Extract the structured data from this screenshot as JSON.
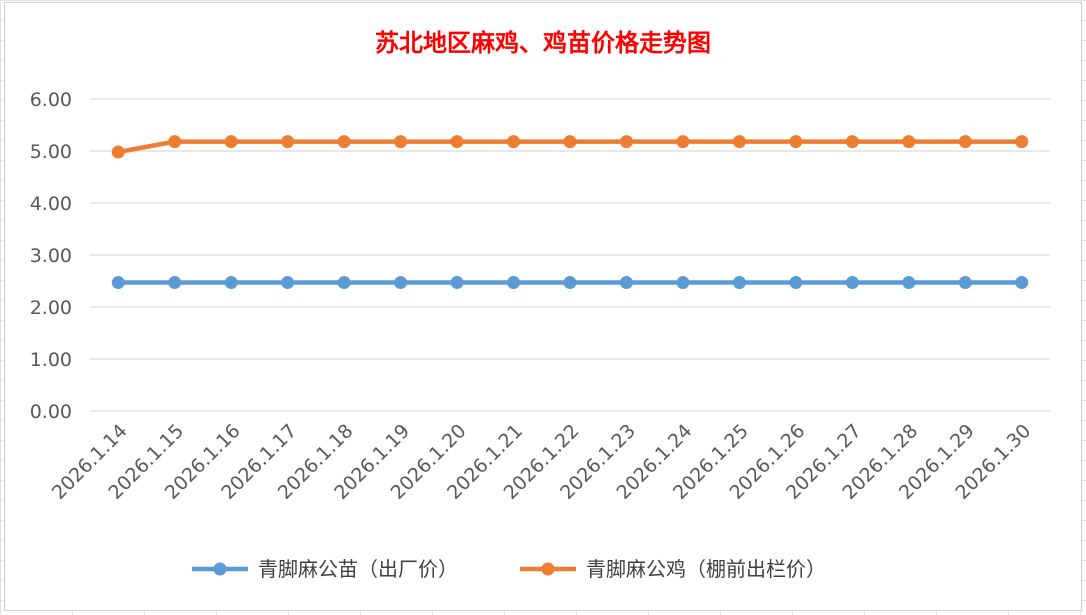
{
  "chart_data": {
    "type": "line",
    "title": "苏北地区麻鸡、鸡苗价格走势图",
    "categories": [
      "2026.1.14",
      "2026.1.15",
      "2026.1.16",
      "2026.1.17",
      "2026.1.18",
      "2026.1.19",
      "2026.1.20",
      "2026.1.21",
      "2026.1.22",
      "2026.1.23",
      "2026.1.24",
      "2026.1.25",
      "2026.1.26",
      "2026.1.27",
      "2026.1.28",
      "2026.1.29",
      "2026.1.30"
    ],
    "y_ticks": [
      "0.00",
      "1.00",
      "2.00",
      "3.00",
      "4.00",
      "5.00",
      "6.00"
    ],
    "ylim": [
      0,
      6
    ],
    "grid": true,
    "legend_position": "bottom",
    "series": [
      {
        "name": "青脚麻公苗（出厂价）",
        "color": "#5b9bd5",
        "values": [
          2.47,
          2.47,
          2.47,
          2.47,
          2.47,
          2.47,
          2.47,
          2.47,
          2.47,
          2.47,
          2.47,
          2.47,
          2.47,
          2.47,
          2.47,
          2.47,
          2.47
        ]
      },
      {
        "name": "青脚麻公鸡（棚前出栏价）",
        "color": "#ed7d31",
        "values": [
          4.98,
          5.18,
          5.18,
          5.18,
          5.18,
          5.18,
          5.18,
          5.18,
          5.18,
          5.18,
          5.18,
          5.18,
          5.18,
          5.18,
          5.18,
          5.18,
          5.18
        ]
      }
    ]
  }
}
